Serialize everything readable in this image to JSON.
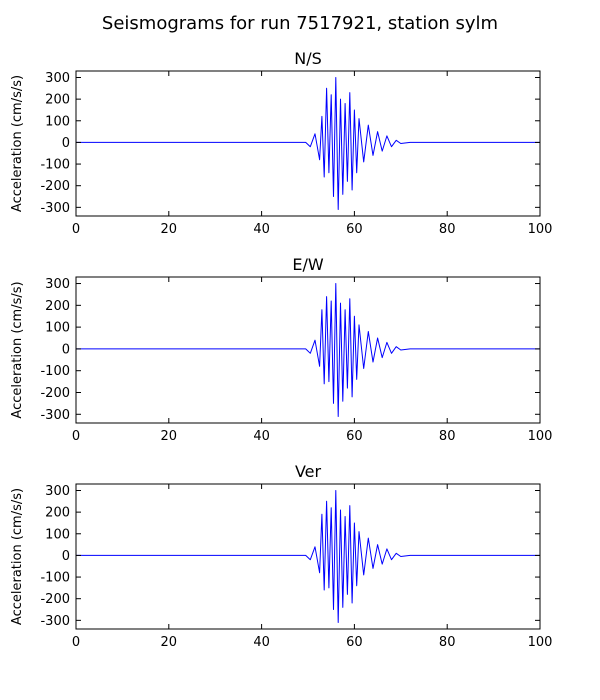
{
  "figure_title": "Seismograms for run 7517921, station sylm",
  "colors": {
    "trace": "#0000ff",
    "axes": "#000000",
    "background": "#ffffff"
  },
  "chart_data": [
    {
      "type": "line",
      "title": "N/S",
      "xlabel": "",
      "ylabel": "Acceleration (cm/s/s)",
      "xlim": [
        0,
        100
      ],
      "ylim": [
        -340,
        330
      ],
      "xticks": [
        0,
        20,
        40,
        60,
        80,
        100
      ],
      "yticks": [
        -300,
        -200,
        -100,
        0,
        100,
        200,
        300
      ],
      "grid": false,
      "series": [
        {
          "x": [
            0,
            49.5,
            50.5,
            51.5,
            52.5,
            53.0,
            53.5,
            54.0,
            54.5,
            55.0,
            55.5,
            56.0,
            56.5,
            57.0,
            57.5,
            58.0,
            58.5,
            59.0,
            59.5,
            60.0,
            60.5,
            61.0,
            62.0,
            63.0,
            64.0,
            65.0,
            66.0,
            67.0,
            68.0,
            69.0,
            70.0,
            72.0,
            100
          ],
          "y": [
            0,
            0,
            -20,
            40,
            -80,
            120,
            -160,
            250,
            -140,
            220,
            -250,
            300,
            -310,
            200,
            -240,
            180,
            -180,
            230,
            -220,
            150,
            -140,
            110,
            -90,
            80,
            -60,
            50,
            -40,
            30,
            -20,
            10,
            -5,
            0,
            0
          ]
        }
      ]
    },
    {
      "type": "line",
      "title": "E/W",
      "xlabel": "",
      "ylabel": "Acceleration (cm/s/s)",
      "xlim": [
        0,
        100
      ],
      "ylim": [
        -340,
        330
      ],
      "xticks": [
        0,
        20,
        40,
        60,
        80,
        100
      ],
      "yticks": [
        -300,
        -200,
        -100,
        0,
        100,
        200,
        300
      ],
      "grid": false,
      "series": [
        {
          "x": [
            0,
            49.5,
            50.5,
            51.5,
            52.5,
            53.0,
            53.5,
            54.0,
            54.5,
            55.0,
            55.5,
            56.0,
            56.5,
            57.0,
            57.5,
            58.0,
            58.5,
            59.0,
            59.5,
            60.0,
            60.5,
            61.0,
            62.0,
            63.0,
            64.0,
            65.0,
            66.0,
            67.0,
            68.0,
            69.0,
            70.0,
            72.0,
            100
          ],
          "y": [
            0,
            0,
            -20,
            40,
            -80,
            180,
            -160,
            240,
            -150,
            220,
            -250,
            300,
            -310,
            210,
            -240,
            180,
            -180,
            230,
            -220,
            150,
            -140,
            110,
            -90,
            80,
            -60,
            50,
            -40,
            30,
            -20,
            10,
            -5,
            0,
            0
          ]
        }
      ]
    },
    {
      "type": "line",
      "title": "Ver",
      "xlabel": "",
      "ylabel": "Acceleration (cm/s/s)",
      "xlim": [
        0,
        100
      ],
      "ylim": [
        -340,
        330
      ],
      "xticks": [
        0,
        20,
        40,
        60,
        80,
        100
      ],
      "yticks": [
        -300,
        -200,
        -100,
        0,
        100,
        200,
        300
      ],
      "grid": false,
      "series": [
        {
          "x": [
            0,
            49.5,
            50.5,
            51.5,
            52.5,
            53.0,
            53.5,
            54.0,
            54.5,
            55.0,
            55.5,
            56.0,
            56.5,
            57.0,
            57.5,
            58.0,
            58.5,
            59.0,
            59.5,
            60.0,
            60.5,
            61.0,
            62.0,
            63.0,
            64.0,
            65.0,
            66.0,
            67.0,
            68.0,
            69.0,
            70.0,
            72.0,
            100
          ],
          "y": [
            0,
            0,
            -20,
            40,
            -80,
            190,
            -160,
            250,
            -150,
            220,
            -250,
            300,
            -310,
            210,
            -240,
            180,
            -180,
            230,
            -220,
            150,
            -140,
            110,
            -90,
            80,
            -60,
            50,
            -40,
            30,
            -20,
            10,
            -5,
            0,
            0
          ]
        }
      ]
    }
  ]
}
